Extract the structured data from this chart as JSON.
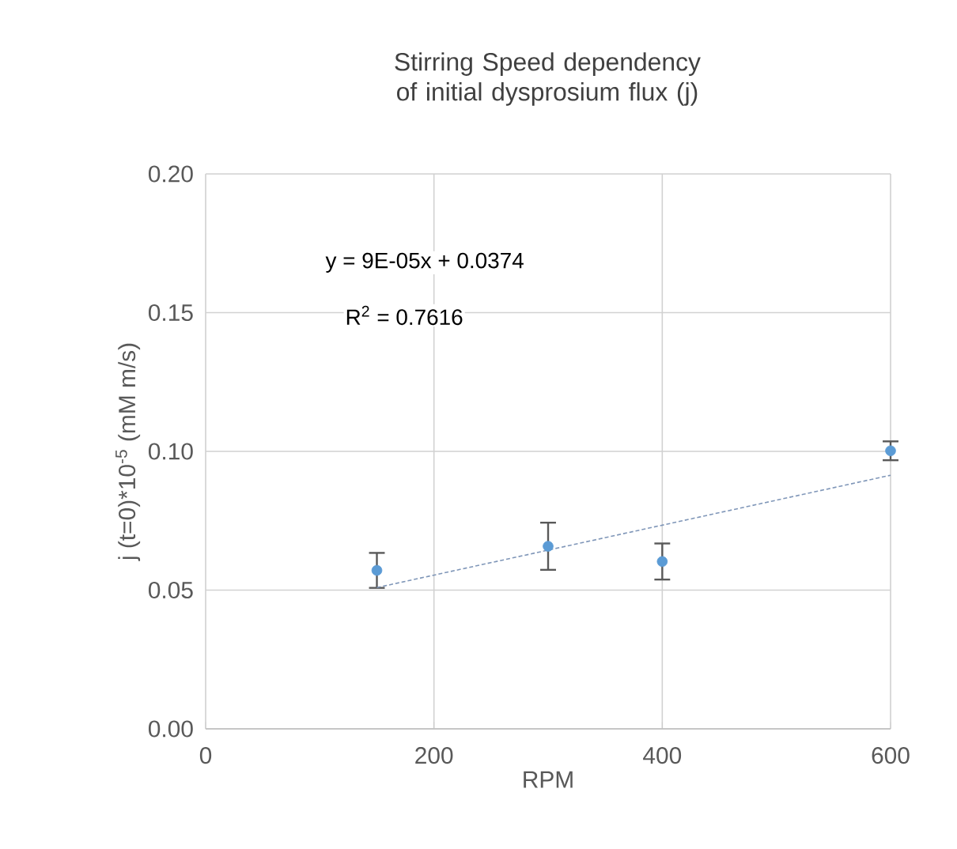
{
  "chart_data": {
    "type": "scatter",
    "title": "Stirring Speed dependency of initial dysprosium flux (j)",
    "xlabel": "RPM",
    "ylabel": "j (t=0)*10$^{-5}$ (mM m/s)",
    "x": [
      150,
      300,
      400,
      600
    ],
    "series": [
      {
        "type": "scatter",
        "color": "#5b9bd5",
        "marker": "circle",
        "values": [
          0.0571,
          0.0658,
          0.0603,
          0.1002
        ],
        "errors": [
          0.0063,
          0.0085,
          0.0065,
          0.0034
        ]
      },
      {
        "type": "line",
        "color": "#7f96b8",
        "line_style": "dashed",
        "marker": "none",
        "x": [
          150,
          600
        ],
        "values": [
          0.0509,
          0.0914
        ]
      }
    ],
    "annotations": [
      "y = 9E-05x + 0.0374",
      "R$^{2}$ = 0.7616"
    ],
    "xlim": [
      0,
      600
    ],
    "ylim": [
      0,
      0.2
    ],
    "xticks": [
      0,
      200,
      400,
      600
    ],
    "yticks": [
      {
        "value": 0,
        "label": "0.00"
      },
      0.05,
      {
        "value": 0.1,
        "label": "0.10"
      },
      0.15,
      {
        "value": 0.2,
        "label": "0.20"
      }
    ],
    "grid": true
  }
}
